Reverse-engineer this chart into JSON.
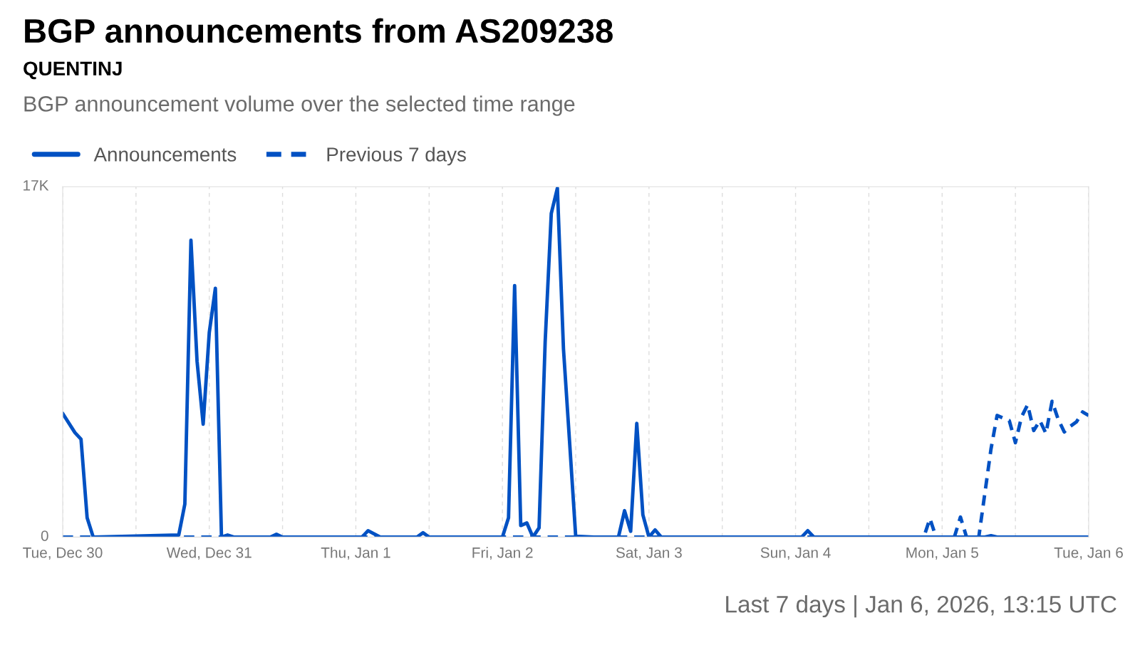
{
  "chart_data": {
    "type": "line",
    "title": "BGP announcements from AS209238",
    "subtitle": "QUENTINJ",
    "annotations": [
      "BGP announcement volume over the selected time range",
      "Last 7 days | Jan 6, 2026, 13:15 UTC"
    ],
    "legend": "top left",
    "grid": "x",
    "marker": "none",
    "ylim": [
      0,
      17000
    ],
    "yticks": [
      0,
      {
        "value": 17000,
        "label": "17K"
      }
    ],
    "xlim": [
      "2025-12-30T00:00",
      "2026-01-06T00:00"
    ],
    "xticks": [
      {
        "value": "2025-12-30T00:00",
        "label": "Tue, Dec 30"
      },
      {
        "value": "2025-12-30T12:00",
        "label": null
      },
      {
        "value": "2025-12-31T00:00",
        "label": "Wed, Dec 31"
      },
      {
        "value": "2025-12-31T12:00",
        "label": null
      },
      {
        "value": "2026-01-01T00:00",
        "label": "Thu, Jan 1"
      },
      {
        "value": "2026-01-01T12:00",
        "label": null
      },
      {
        "value": "2026-01-02T00:00",
        "label": "Fri, Jan 2"
      },
      {
        "value": "2026-01-02T12:00",
        "label": null
      },
      {
        "value": "2026-01-03T00:00",
        "label": "Sat, Jan 3"
      },
      {
        "value": "2026-01-03T12:00",
        "label": null
      },
      {
        "value": "2026-01-04T00:00",
        "label": "Sun, Jan 4"
      },
      {
        "value": "2026-01-04T12:00",
        "label": null
      },
      {
        "value": "2026-01-05T00:00",
        "label": "Mon, Jan 5"
      },
      {
        "value": "2026-01-05T12:00",
        "label": null
      },
      {
        "value": "2026-01-06T00:00",
        "label": "Tue, Jan 6"
      }
    ],
    "series": [
      {
        "name": "Announcements",
        "color": "#0051c3",
        "line_style": "solid",
        "x": [
          "2025-12-30T00:00",
          "2025-12-30T02:00",
          "2025-12-30T03:00",
          "2025-12-30T04:00",
          "2025-12-30T05:00",
          "2025-12-30T19:00",
          "2025-12-30T20:00",
          "2025-12-30T21:00",
          "2025-12-30T22:00",
          "2025-12-30T23:00",
          "2025-12-31T00:00",
          "2025-12-31T01:00",
          "2025-12-31T02:00",
          "2025-12-31T03:00",
          "2025-12-31T04:00",
          "2025-12-31T10:00",
          "2025-12-31T11:00",
          "2025-12-31T12:00",
          "2026-01-01T01:00",
          "2026-01-01T02:00",
          "2026-01-01T04:00",
          "2026-01-01T10:00",
          "2026-01-01T11:00",
          "2026-01-01T12:00",
          "2026-01-02T00:00",
          "2026-01-02T01:00",
          "2026-01-02T02:00",
          "2026-01-02T03:00",
          "2026-01-02T04:00",
          "2026-01-02T05:00",
          "2026-01-02T06:00",
          "2026-01-02T07:00",
          "2026-01-02T08:00",
          "2026-01-02T09:00",
          "2026-01-02T10:00",
          "2026-01-02T11:00",
          "2026-01-02T12:00",
          "2026-01-02T15:00",
          "2026-01-02T19:00",
          "2026-01-02T20:00",
          "2026-01-02T21:00",
          "2026-01-02T22:00",
          "2026-01-02T23:00",
          "2026-01-03T00:00",
          "2026-01-03T01:00",
          "2026-01-03T02:00",
          "2026-01-03T03:00",
          "2026-01-04T01:00",
          "2026-01-04T02:00",
          "2026-01-04T03:00",
          "2026-01-05T07:00",
          "2026-01-05T08:00",
          "2026-01-05T09:00",
          "2026-01-06T00:00"
        ],
        "values": [
          6000,
          5070,
          4750,
          940,
          0,
          100,
          1600,
          14400,
          8530,
          5480,
          9920,
          12070,
          0,
          100,
          0,
          0,
          140,
          0,
          0,
          310,
          0,
          0,
          210,
          0,
          0,
          940,
          12200,
          560,
          690,
          0,
          450,
          9470,
          15700,
          16930,
          9120,
          4610,
          40,
          0,
          0,
          1280,
          280,
          5520,
          1080,
          0,
          350,
          0,
          0,
          0,
          310,
          0,
          0,
          70,
          0,
          0
        ]
      },
      {
        "name": "Previous 7 days",
        "color": "#0051c3",
        "line_style": "dashed",
        "x": [
          "2025-12-30T00:00",
          "2026-01-04T21:00",
          "2026-01-04T22:00",
          "2026-01-04T23:00",
          "2026-01-05T02:00",
          "2026-01-05T03:00",
          "2026-01-05T04:00",
          "2026-01-05T06:00",
          "2026-01-05T08:00",
          "2026-01-05T09:00",
          "2026-01-05T11:00",
          "2026-01-05T12:00",
          "2026-01-05T13:00",
          "2026-01-05T14:00",
          "2026-01-05T15:00",
          "2026-01-05T16:00",
          "2026-01-05T17:00",
          "2026-01-05T18:00",
          "2026-01-05T19:00",
          "2026-01-05T20:00",
          "2026-01-05T21:00",
          "2026-01-05T22:00",
          "2026-01-05T23:00",
          "2026-01-06T00:00"
        ],
        "values": [
          0,
          0,
          900,
          0,
          0,
          970,
          0,
          0,
          4270,
          5900,
          5650,
          4580,
          5830,
          6420,
          5170,
          5650,
          5030,
          6590,
          5720,
          5100,
          5380,
          5590,
          6070,
          5900
        ]
      }
    ]
  }
}
